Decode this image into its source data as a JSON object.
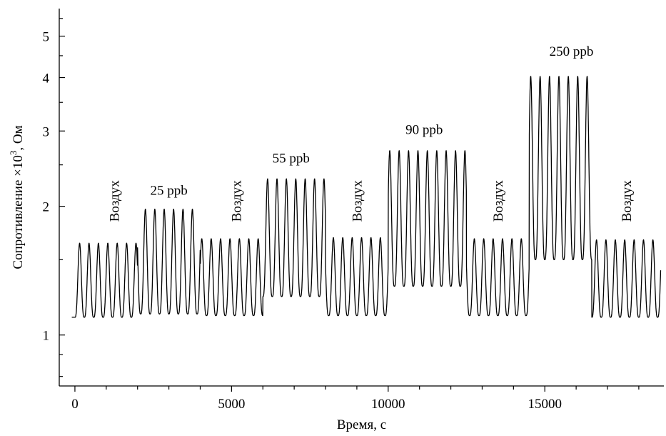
{
  "chart_data": {
    "type": "line",
    "xlabel": "Время, с",
    "ylabel_main": "Сопротивление ×10",
    "ylabel_sup": "3",
    "ylabel_unit": ", Ом",
    "x_range": [
      -500,
      18800
    ],
    "y_range": [
      0.76,
      5.8
    ],
    "y_scale": "log",
    "x_ticks": [
      0,
      5000,
      10000,
      15000
    ],
    "x_tick_labels": [
      "0",
      "5000",
      "10000",
      "15000"
    ],
    "y_ticks": [
      1,
      2,
      3,
      4,
      5
    ],
    "y_tick_labels": [
      "1",
      "2",
      "3",
      "4",
      "5"
    ],
    "grid": false,
    "line_color": "#000000",
    "period_s": 300,
    "segments": [
      {
        "label": "Воздух",
        "start": 0,
        "end": 2000,
        "min": 1.1,
        "max": 1.64,
        "orientation": "vertical",
        "label_x": 1400,
        "label_y": 1.84
      },
      {
        "label": "25 ppb",
        "start": 2000,
        "end": 4000,
        "min": 1.12,
        "max": 1.97,
        "orientation": "horizontal",
        "label_x": 3000,
        "label_y": 2.13
      },
      {
        "label": "Воздух",
        "start": 4000,
        "end": 6000,
        "min": 1.11,
        "max": 1.68,
        "orientation": "vertical",
        "label_x": 5300,
        "label_y": 1.84
      },
      {
        "label": "55 ppb",
        "start": 6000,
        "end": 8000,
        "min": 1.23,
        "max": 2.32,
        "orientation": "horizontal",
        "label_x": 6900,
        "label_y": 2.53
      },
      {
        "label": "Воздух",
        "start": 8000,
        "end": 10000,
        "min": 1.11,
        "max": 1.69,
        "orientation": "vertical",
        "label_x": 9150,
        "label_y": 1.84
      },
      {
        "label": "90 ppb",
        "start": 10000,
        "end": 12500,
        "min": 1.3,
        "max": 2.7,
        "orientation": "horizontal",
        "label_x": 11150,
        "label_y": 2.95
      },
      {
        "label": "Воздух",
        "start": 12500,
        "end": 14500,
        "min": 1.11,
        "max": 1.68,
        "orientation": "vertical",
        "label_x": 13650,
        "label_y": 1.84
      },
      {
        "label": "250 ppb",
        "start": 14500,
        "end": 16500,
        "min": 1.5,
        "max": 4.03,
        "orientation": "horizontal",
        "label_x": 15850,
        "label_y": 4.5
      },
      {
        "label": "Воздух",
        "start": 16500,
        "end": 18800,
        "min": 1.1,
        "max": 1.67,
        "orientation": "vertical",
        "label_x": 17750,
        "label_y": 1.84
      }
    ]
  }
}
